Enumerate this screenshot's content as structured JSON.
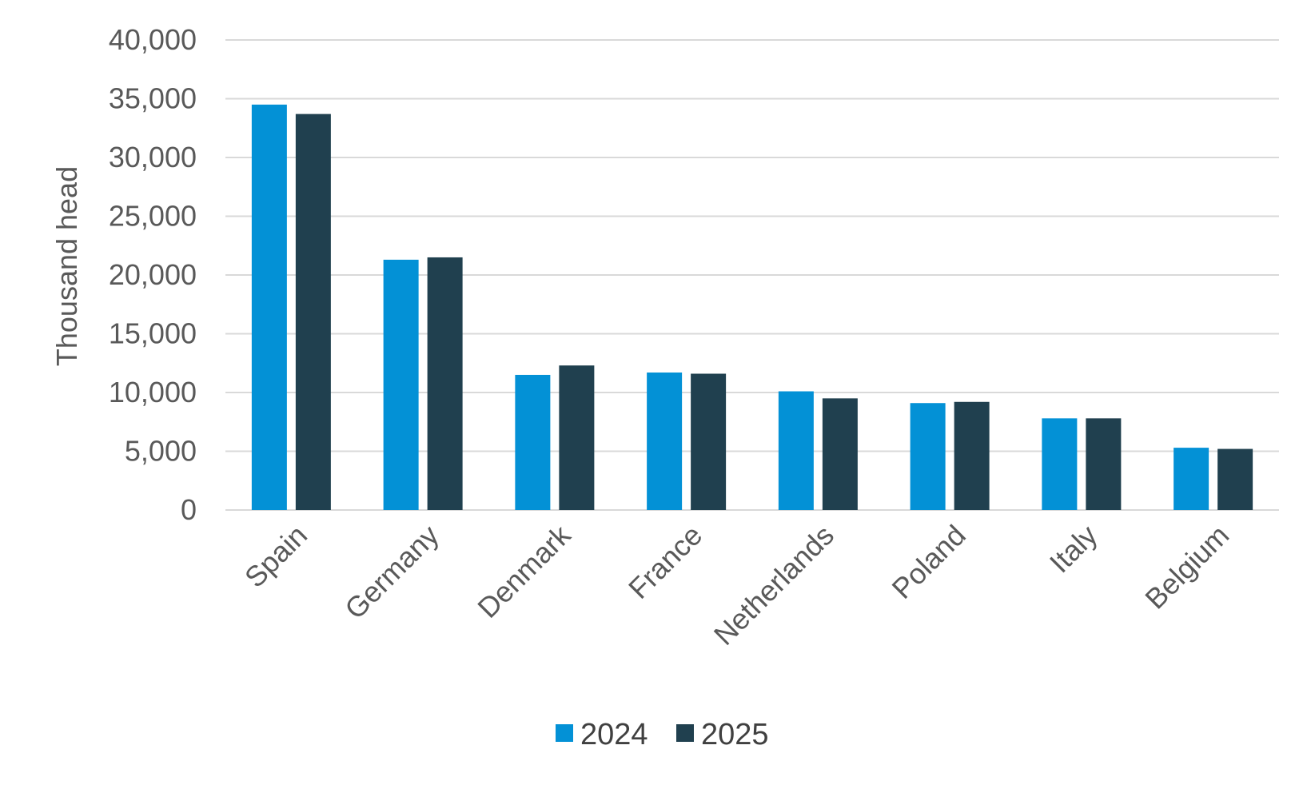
{
  "chart_data": {
    "type": "bar",
    "title": "",
    "xlabel": "",
    "ylabel": "Thousand head",
    "ylim": [
      0,
      40000
    ],
    "yticks": [
      0,
      5000,
      10000,
      15000,
      20000,
      25000,
      30000,
      35000,
      40000
    ],
    "ytick_labels": [
      "0",
      "5,000",
      "10,000",
      "15,000",
      "20,000",
      "25,000",
      "30,000",
      "35,000",
      "40,000"
    ],
    "grid": true,
    "legend_position": "bottom",
    "categories": [
      "Spain",
      "Germany",
      "Denmark",
      "France",
      "Netherlands",
      "Poland",
      "Italy",
      "Belgium"
    ],
    "series": [
      {
        "name": "2024",
        "color": "#0391d6",
        "values": [
          34500,
          21300,
          11500,
          11700,
          10100,
          9100,
          7800,
          5300
        ]
      },
      {
        "name": "2025",
        "color": "#20404f",
        "values": [
          33700,
          21500,
          12300,
          11600,
          9500,
          9200,
          7800,
          5200
        ]
      }
    ]
  }
}
